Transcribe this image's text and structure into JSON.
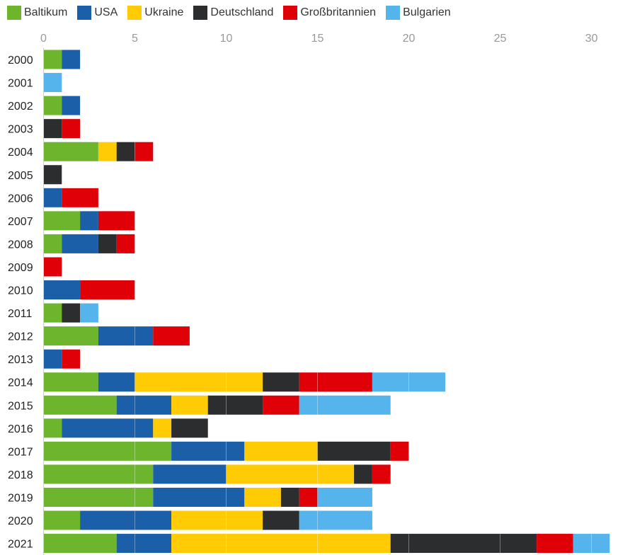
{
  "chart_data": {
    "type": "bar",
    "orientation": "horizontal",
    "stacked": true,
    "title": "",
    "xlabel": "",
    "ylabel": "",
    "xlim": [
      0,
      31
    ],
    "x_ticks": [
      "0",
      "5",
      "10",
      "15",
      "20",
      "25",
      "30"
    ],
    "grid": true,
    "legend_position": "top-left",
    "categories": [
      "2000",
      "2001",
      "2002",
      "2003",
      "2004",
      "2005",
      "2006",
      "2007",
      "2008",
      "2009",
      "2010",
      "2011",
      "2012",
      "2013",
      "2014",
      "2015",
      "2016",
      "2017",
      "2018",
      "2019",
      "2020",
      "2021"
    ],
    "series": [
      {
        "name": "Baltikum",
        "color": "#6cb52d",
        "values": [
          1,
          0,
          1,
          0,
          3,
          0,
          0,
          2,
          1,
          0,
          0,
          1,
          3,
          0,
          3,
          4,
          1,
          7,
          6,
          6,
          2,
          4
        ]
      },
      {
        "name": "USA",
        "color": "#1a5fa8",
        "values": [
          1,
          0,
          1,
          0,
          0,
          0,
          1,
          1,
          2,
          0,
          2,
          0,
          3,
          1,
          2,
          3,
          5,
          4,
          4,
          5,
          5,
          3
        ]
      },
      {
        "name": "Ukraine",
        "color": "#ffcb05",
        "values": [
          0,
          0,
          0,
          0,
          1,
          0,
          0,
          0,
          0,
          0,
          0,
          0,
          0,
          0,
          7,
          2,
          1,
          4,
          7,
          2,
          5,
          12
        ]
      },
      {
        "name": "Deutschland",
        "color": "#2b2d2f",
        "values": [
          0,
          0,
          0,
          1,
          1,
          1,
          0,
          0,
          1,
          0,
          0,
          1,
          0,
          0,
          2,
          3,
          2,
          4,
          1,
          1,
          2,
          8
        ]
      },
      {
        "name": "Großbritannien",
        "color": "#e00008",
        "values": [
          0,
          0,
          0,
          1,
          1,
          0,
          2,
          2,
          1,
          1,
          3,
          0,
          2,
          1,
          4,
          2,
          0,
          1,
          1,
          1,
          0,
          2
        ]
      },
      {
        "name": "Bulgarien",
        "color": "#56b4ec",
        "values": [
          0,
          1,
          0,
          0,
          0,
          0,
          0,
          0,
          0,
          0,
          0,
          1,
          0,
          0,
          4,
          5,
          0,
          0,
          0,
          3,
          4,
          2
        ]
      }
    ]
  }
}
